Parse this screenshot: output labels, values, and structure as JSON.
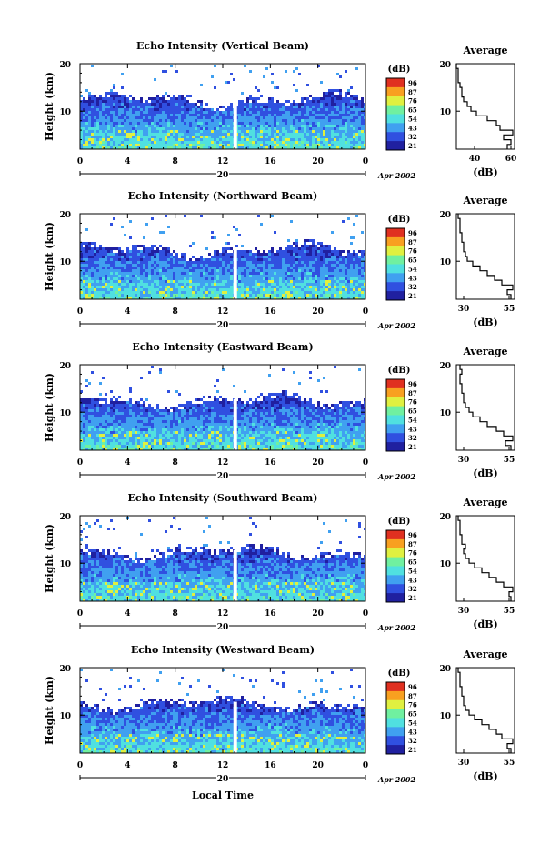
{
  "figure": {
    "date_label": "Apr 2002",
    "day_label": "20",
    "x_title": "Local Time",
    "height_label": "Height (km)",
    "unit_label": "(dB)",
    "average_title": "Average",
    "colorbar_ticks": [
      "96",
      "87",
      "76",
      "65",
      "54",
      "43",
      "32",
      "21"
    ],
    "colormap": [
      "#2020a0",
      "#3050e0",
      "#40a0f0",
      "#50e0e0",
      "#70f0a0",
      "#e0f040",
      "#f8a020",
      "#e03020"
    ]
  },
  "chart_data": [
    {
      "type": "heatmap",
      "title": "Echo Intensity (Vertical Beam)",
      "x_ticks": [
        "0",
        "4",
        "8",
        "12",
        "16",
        "20",
        "0"
      ],
      "x_range": [
        0,
        24
      ],
      "y_ticks": [
        "20",
        "10"
      ],
      "y_range": [
        2,
        20
      ],
      "avg": {
        "xlim": [
          30,
          62
        ],
        "xticks": [
          "40",
          "60"
        ],
        "xtick_values": [
          40,
          60
        ],
        "ylim": [
          2,
          20
        ],
        "yticks": [
          "20",
          "10"
        ],
        "profile": [
          [
            58,
            2.5
          ],
          [
            60,
            3.5
          ],
          [
            56,
            4.5
          ],
          [
            61,
            5.5
          ],
          [
            54,
            6.5
          ],
          [
            52,
            7.5
          ],
          [
            47,
            8.5
          ],
          [
            41,
            9.5
          ],
          [
            38,
            10.5
          ],
          [
            36,
            11.5
          ],
          [
            34,
            12.5
          ],
          [
            33,
            13.5
          ],
          [
            33,
            14.5
          ],
          [
            32,
            15.5
          ],
          [
            31,
            16.5
          ],
          [
            31,
            17.5
          ],
          [
            31,
            18.5
          ],
          [
            30,
            19.5
          ]
        ]
      }
    },
    {
      "type": "heatmap",
      "title": "Echo Intensity (Northward Beam)",
      "x_ticks": [
        "0",
        "4",
        "8",
        "12",
        "16",
        "20",
        "0"
      ],
      "x_range": [
        0,
        24
      ],
      "y_ticks": [
        "20",
        "10"
      ],
      "y_range": [
        2,
        20
      ],
      "avg": {
        "xlim": [
          26,
          58
        ],
        "xticks": [
          "30",
          "55"
        ],
        "xtick_values": [
          30,
          55
        ],
        "ylim": [
          2,
          20
        ],
        "yticks": [
          "20",
          "10"
        ],
        "profile": [
          [
            56,
            2.5
          ],
          [
            54,
            3.5
          ],
          [
            57,
            4.5
          ],
          [
            51,
            5.5
          ],
          [
            47,
            6.5
          ],
          [
            43,
            7.5
          ],
          [
            39,
            8.5
          ],
          [
            35,
            9.5
          ],
          [
            32,
            10.5
          ],
          [
            31,
            11.5
          ],
          [
            30,
            12.5
          ],
          [
            30,
            13.5
          ],
          [
            29,
            14.5
          ],
          [
            29,
            15.5
          ],
          [
            28,
            16.5
          ],
          [
            28,
            17.5
          ],
          [
            28,
            18.5
          ],
          [
            27,
            19.5
          ]
        ]
      }
    },
    {
      "type": "heatmap",
      "title": "Echo Intensity (Eastward Beam)",
      "x_ticks": [
        "0",
        "4",
        "8",
        "12",
        "16",
        "20",
        "0"
      ],
      "x_range": [
        0,
        24
      ],
      "y_ticks": [
        "20",
        "10"
      ],
      "y_range": [
        2,
        20
      ],
      "avg": {
        "xlim": [
          26,
          58
        ],
        "xticks": [
          "30",
          "55"
        ],
        "xtick_values": [
          30,
          55
        ],
        "ylim": [
          2,
          20
        ],
        "yticks": [
          "20",
          "10"
        ],
        "profile": [
          [
            56,
            2.5
          ],
          [
            53,
            3.5
          ],
          [
            57,
            4.5
          ],
          [
            52,
            5.5
          ],
          [
            48,
            6.5
          ],
          [
            43,
            7.5
          ],
          [
            39,
            8.5
          ],
          [
            35,
            9.5
          ],
          [
            33,
            10.5
          ],
          [
            31,
            11.5
          ],
          [
            30,
            12.5
          ],
          [
            30,
            13.5
          ],
          [
            29,
            14.5
          ],
          [
            29,
            15.5
          ],
          [
            28,
            16.5
          ],
          [
            28,
            17.5
          ],
          [
            29,
            18.5
          ],
          [
            28,
            19.5
          ]
        ]
      }
    },
    {
      "type": "heatmap",
      "title": "Echo Intensity (Southward Beam)",
      "x_ticks": [
        "0",
        "4",
        "8",
        "12",
        "16",
        "20",
        "0"
      ],
      "x_range": [
        0,
        24
      ],
      "y_ticks": [
        "20",
        "10"
      ],
      "y_range": [
        2,
        20
      ],
      "avg": {
        "xlim": [
          26,
          58
        ],
        "xticks": [
          "30",
          "55"
        ],
        "xtick_values": [
          30,
          55
        ],
        "ylim": [
          2,
          20
        ],
        "yticks": [
          "20",
          "10"
        ],
        "profile": [
          [
            56,
            2.5
          ],
          [
            55,
            3.5
          ],
          [
            57,
            4.5
          ],
          [
            52,
            5.5
          ],
          [
            48,
            6.5
          ],
          [
            44,
            7.5
          ],
          [
            40,
            8.5
          ],
          [
            36,
            9.5
          ],
          [
            33,
            10.5
          ],
          [
            31,
            11.5
          ],
          [
            30,
            12.5
          ],
          [
            31,
            13.5
          ],
          [
            29,
            14.5
          ],
          [
            29,
            15.5
          ],
          [
            28,
            16.5
          ],
          [
            28,
            17.5
          ],
          [
            28,
            18.5
          ],
          [
            27,
            19.5
          ]
        ]
      }
    },
    {
      "type": "heatmap",
      "title": "Echo Intensity (Westward Beam)",
      "x_ticks": [
        "0",
        "4",
        "8",
        "12",
        "16",
        "20",
        "0"
      ],
      "x_range": [
        0,
        24
      ],
      "y_ticks": [
        "20",
        "10"
      ],
      "y_range": [
        2,
        20
      ],
      "avg": {
        "xlim": [
          26,
          58
        ],
        "xticks": [
          "30",
          "55"
        ],
        "xtick_values": [
          30,
          55
        ],
        "ylim": [
          2,
          20
        ],
        "yticks": [
          "20",
          "10"
        ],
        "profile": [
          [
            56,
            2.5
          ],
          [
            54,
            3.5
          ],
          [
            57,
            4.5
          ],
          [
            51,
            5.5
          ],
          [
            48,
            6.5
          ],
          [
            44,
            7.5
          ],
          [
            40,
            8.5
          ],
          [
            36,
            9.5
          ],
          [
            33,
            10.5
          ],
          [
            31,
            11.5
          ],
          [
            30,
            12.5
          ],
          [
            30,
            13.5
          ],
          [
            29,
            14.5
          ],
          [
            29,
            15.5
          ],
          [
            28,
            16.5
          ],
          [
            28,
            17.5
          ],
          [
            28,
            18.5
          ],
          [
            27,
            19.5
          ]
        ]
      }
    }
  ]
}
